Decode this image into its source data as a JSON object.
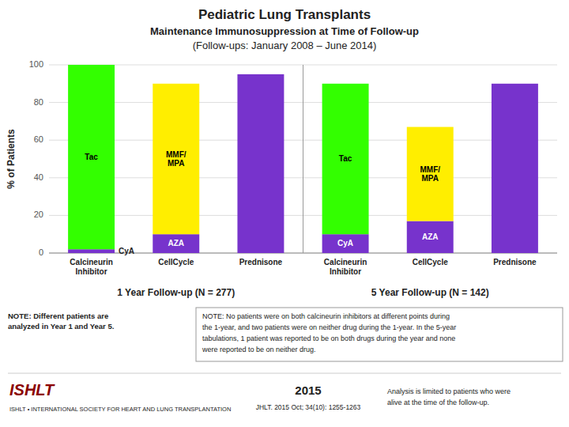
{
  "chart_data": {
    "type": "bar",
    "stacked": true,
    "title": "Pediatric Lung Transplants",
    "subtitle": [
      "Maintenance Immunosuppression at Time of Follow-up",
      "(Follow-ups: January 2008 – June 2014)"
    ],
    "ylabel": "% of Patients",
    "categories": [
      "Calcineurin\nInhibitor",
      "CellCycle",
      "Prednisone",
      "Calcineurin\nInhibitor",
      "CellCycle",
      "Prednisone"
    ],
    "group_labels": [
      "1 Year Follow-up  (N = 277)",
      "5 Year Follow-up  (N = 142)"
    ],
    "series": [
      {
        "color": "#7733cc",
        "values": [
          2,
          10,
          95,
          10,
          17,
          90
        ],
        "labels": [
          "CyA",
          "AZA",
          null,
          "CyA",
          "AZA",
          null
        ]
      },
      {
        "colors": [
          "#33ff00",
          "#ffee00",
          null,
          "#33ff00",
          "#ffee00",
          null
        ],
        "values": [
          98,
          80,
          null,
          80,
          50,
          null
        ],
        "labels": [
          "Tac",
          "MMF/\nMPA",
          null,
          "Tac",
          "MMF/\nMPA",
          null
        ]
      }
    ],
    "ylim": [
      0,
      100
    ],
    "yticks": [
      0,
      20,
      40,
      60,
      80,
      100
    ],
    "grid": true,
    "annotations": [
      "NOTE: Different patients are\nanalyzed in Year 1 and Year 5.",
      "NOTE: No patients were on both calcineurin inhibitors at different points during\nthe 1-year, and two patients were on neither drug during the 1-year.  In the 5-year\ntabulations, 1 patient was reported to be on both drugs during the year and none\nwere reported to be on neither drug.",
      "ISHLT",
      "ISHLT • INTERNATIONAL SOCIETY FOR HEART AND LUNG TRANSPLANTATION",
      "2015",
      "JHLT. 2015 Oct; 34(10): 1255-1263",
      "Analysis is limited to patients who were\nalive at the time of the follow-up."
    ]
  }
}
